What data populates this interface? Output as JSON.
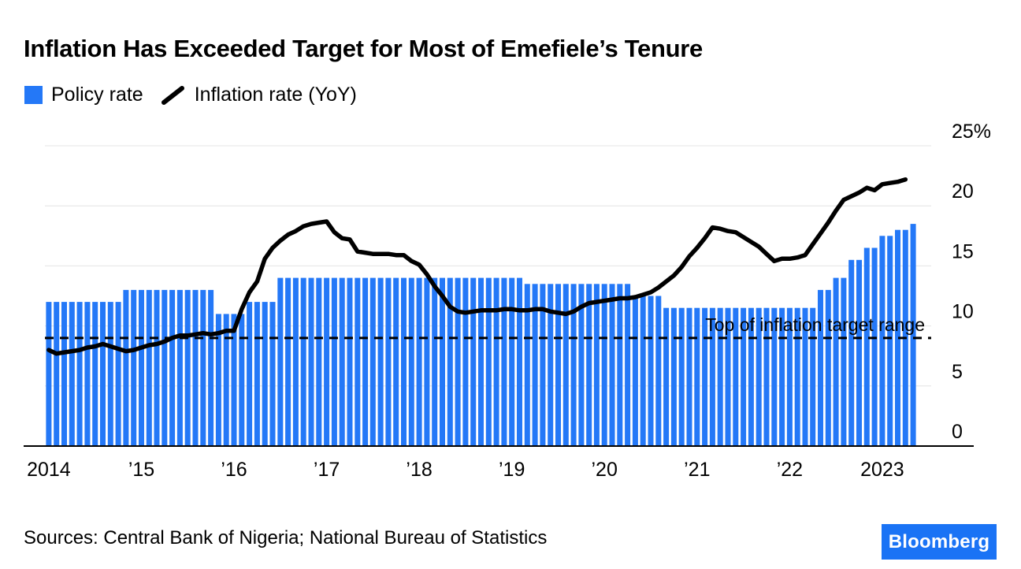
{
  "header": {
    "title": "Inflation Has Exceeded Target for Most of Emefiele’s Tenure"
  },
  "legend": {
    "policy_rate_label": "Policy rate",
    "inflation_rate_label": "Inflation rate (YoY)"
  },
  "colors": {
    "bar_blue": "#2478f7",
    "line_black": "#000000",
    "grid_gray": "#e4e4e4",
    "axis_black": "#000000",
    "logo_blue": "#1a73f5"
  },
  "annotation": {
    "target_label": "Top of inflation target range"
  },
  "footer": {
    "sources": "Sources: Central Bank of Nigeria; National Bureau of Statistics",
    "logo_text": "Bloomberg"
  },
  "chart_data": {
    "type": "combo",
    "title": "Inflation Has Exceeded Target for Most of Emefiele’s Tenure",
    "x_unit": "month",
    "x_start": "2014-01",
    "x_end_bars": "2023-05",
    "x_end_line": "2023-04",
    "ylim": [
      0,
      25
    ],
    "yticks": [
      0,
      5,
      10,
      15,
      20,
      25
    ],
    "ytick_labels": [
      "0",
      "5",
      "10",
      "15",
      "20",
      "25%"
    ],
    "y_axis_side": "right",
    "grid": "horizontal-only",
    "legend_position": "top-left",
    "xticks": [
      {
        "month_index": 0,
        "label": "2014"
      },
      {
        "month_index": 12,
        "label": "’15"
      },
      {
        "month_index": 24,
        "label": "’16"
      },
      {
        "month_index": 36,
        "label": "’17"
      },
      {
        "month_index": 48,
        "label": "’18"
      },
      {
        "month_index": 60,
        "label": "’19"
      },
      {
        "month_index": 72,
        "label": "’20"
      },
      {
        "month_index": 84,
        "label": "’21"
      },
      {
        "month_index": 96,
        "label": "’22"
      },
      {
        "month_index": 108,
        "label": "2023"
      }
    ],
    "reference_line": {
      "value": 9,
      "style": "dashed",
      "color": "#000000",
      "label": "Top of inflation target range"
    },
    "series": [
      {
        "name": "Policy rate",
        "type": "bar",
        "color_key": "bar_blue",
        "values": [
          12,
          12,
          12,
          12,
          12,
          12,
          12,
          12,
          12,
          12,
          13,
          13,
          13,
          13,
          13,
          13,
          13,
          13,
          13,
          13,
          13,
          13,
          11,
          11,
          11,
          11,
          12,
          12,
          12,
          12,
          14,
          14,
          14,
          14,
          14,
          14,
          14,
          14,
          14,
          14,
          14,
          14,
          14,
          14,
          14,
          14,
          14,
          14,
          14,
          14,
          14,
          14,
          14,
          14,
          14,
          14,
          14,
          14,
          14,
          14,
          14,
          14,
          13.5,
          13.5,
          13.5,
          13.5,
          13.5,
          13.5,
          13.5,
          13.5,
          13.5,
          13.5,
          13.5,
          13.5,
          13.5,
          13.5,
          12.5,
          12.5,
          12.5,
          12.5,
          11.5,
          11.5,
          11.5,
          11.5,
          11.5,
          11.5,
          11.5,
          11.5,
          11.5,
          11.5,
          11.5,
          11.5,
          11.5,
          11.5,
          11.5,
          11.5,
          11.5,
          11.5,
          11.5,
          11.5,
          13,
          13,
          14,
          14,
          15.5,
          15.5,
          16.5,
          16.5,
          17.5,
          17.5,
          18,
          18,
          18.5
        ]
      },
      {
        "name": "Inflation rate (YoY)",
        "type": "line",
        "color_key": "line_black",
        "values": [
          8.0,
          7.7,
          7.8,
          7.9,
          8.0,
          8.2,
          8.3,
          8.5,
          8.3,
          8.1,
          7.9,
          8.0,
          8.2,
          8.4,
          8.5,
          8.7,
          9.0,
          9.2,
          9.2,
          9.3,
          9.4,
          9.3,
          9.4,
          9.6,
          9.6,
          11.4,
          12.8,
          13.7,
          15.6,
          16.5,
          17.1,
          17.6,
          17.9,
          18.3,
          18.5,
          18.6,
          18.7,
          17.8,
          17.3,
          17.2,
          16.2,
          16.1,
          16.0,
          16.0,
          16.0,
          15.9,
          15.9,
          15.4,
          15.1,
          14.3,
          13.3,
          12.5,
          11.6,
          11.2,
          11.1,
          11.2,
          11.3,
          11.3,
          11.3,
          11.4,
          11.4,
          11.3,
          11.3,
          11.4,
          11.4,
          11.2,
          11.1,
          11.0,
          11.2,
          11.6,
          11.9,
          12.0,
          12.1,
          12.2,
          12.3,
          12.3,
          12.4,
          12.6,
          12.8,
          13.2,
          13.7,
          14.2,
          14.9,
          15.8,
          16.5,
          17.3,
          18.2,
          18.1,
          17.9,
          17.8,
          17.4,
          17.0,
          16.6,
          16.0,
          15.4,
          15.6,
          15.6,
          15.7,
          15.9,
          16.8,
          17.7,
          18.6,
          19.6,
          20.5,
          20.8,
          21.1,
          21.5,
          21.3,
          21.8,
          21.9,
          22.0,
          22.2
        ]
      }
    ]
  }
}
